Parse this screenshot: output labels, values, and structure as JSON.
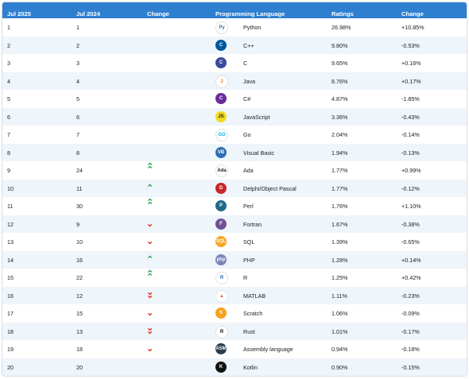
{
  "headers": [
    "Jul 2025",
    "Jul 2024",
    "Change",
    "Programming Language",
    "Ratings",
    "Change"
  ],
  "rows": [
    {
      "jul2025": "1",
      "jul2024": "1",
      "trend": "",
      "lang": "Python",
      "rating": "26.98%",
      "change": "+10.85%",
      "icon": "python-icon",
      "bg": "#ffffff",
      "fg": "#3776ab",
      "glyph": "Py"
    },
    {
      "jul2025": "2",
      "jul2024": "2",
      "trend": "",
      "lang": "C++",
      "rating": "9.80%",
      "change": "-0.53%",
      "icon": "cpp-icon",
      "bg": "#00599c",
      "fg": "#ffffff",
      "glyph": "C"
    },
    {
      "jul2025": "3",
      "jul2024": "3",
      "trend": "",
      "lang": "C",
      "rating": "9.65%",
      "change": "+0.16%",
      "icon": "c-icon",
      "bg": "#3a4aa0",
      "fg": "#ffffff",
      "glyph": "C"
    },
    {
      "jul2025": "4",
      "jul2024": "4",
      "trend": "",
      "lang": "Java",
      "rating": "8.76%",
      "change": "+0.17%",
      "icon": "java-icon",
      "bg": "#ffffff",
      "fg": "#e76f00",
      "glyph": "J"
    },
    {
      "jul2025": "5",
      "jul2024": "5",
      "trend": "",
      "lang": "C#",
      "rating": "4.87%",
      "change": "-1.85%",
      "icon": "csharp-icon",
      "bg": "#6a2c9a",
      "fg": "#ffffff",
      "glyph": "C"
    },
    {
      "jul2025": "6",
      "jul2024": "6",
      "trend": "",
      "lang": "JavaScript",
      "rating": "3.36%",
      "change": "-0.43%",
      "icon": "javascript-icon",
      "bg": "#f0db1f",
      "fg": "#222222",
      "glyph": "JS"
    },
    {
      "jul2025": "7",
      "jul2024": "7",
      "trend": "",
      "lang": "Go",
      "rating": "2.04%",
      "change": "-0.14%",
      "icon": "go-icon",
      "bg": "#ffffff",
      "fg": "#00add8",
      "glyph": "GO"
    },
    {
      "jul2025": "8",
      "jul2024": "8",
      "trend": "",
      "lang": "Visual Basic",
      "rating": "1.94%",
      "change": "-0.13%",
      "icon": "visual-basic-icon",
      "bg": "#2f6fb0",
      "fg": "#ffffff",
      "glyph": "VB"
    },
    {
      "jul2025": "9",
      "jul2024": "24",
      "trend": "up2",
      "lang": "Ada",
      "rating": "1.77%",
      "change": "+0.99%",
      "icon": "ada-icon",
      "bg": "#ffffff",
      "fg": "#222222",
      "glyph": "Ada"
    },
    {
      "jul2025": "10",
      "jul2024": "11",
      "trend": "up1",
      "lang": "Delphi/Object Pascal",
      "rating": "1.77%",
      "change": "-0.12%",
      "icon": "delphi-icon",
      "bg": "#c62828",
      "fg": "#ffffff",
      "glyph": "D"
    },
    {
      "jul2025": "11",
      "jul2024": "30",
      "trend": "up2",
      "lang": "Perl",
      "rating": "1.76%",
      "change": "+1.10%",
      "icon": "perl-icon",
      "bg": "#1f6a8a",
      "fg": "#ffffff",
      "glyph": "P"
    },
    {
      "jul2025": "12",
      "jul2024": "9",
      "trend": "down1",
      "lang": "Fortran",
      "rating": "1.67%",
      "change": "-0.38%",
      "icon": "fortran-icon",
      "bg": "#734f96",
      "fg": "#ffffff",
      "glyph": "F"
    },
    {
      "jul2025": "13",
      "jul2024": "10",
      "trend": "down1",
      "lang": "SQL",
      "rating": "1.39%",
      "change": "-0.65%",
      "icon": "sql-icon",
      "bg": "#f5a623",
      "fg": "#ffffff",
      "glyph": "SQL"
    },
    {
      "jul2025": "14",
      "jul2024": "16",
      "trend": "up1",
      "lang": "PHP",
      "rating": "1.28%",
      "change": "+0.14%",
      "icon": "php-icon",
      "bg": "#7a86b8",
      "fg": "#ffffff",
      "glyph": "php"
    },
    {
      "jul2025": "15",
      "jul2024": "22",
      "trend": "up2",
      "lang": "R",
      "rating": "1.25%",
      "change": "+0.42%",
      "icon": "r-icon",
      "bg": "#ffffff",
      "fg": "#276dc3",
      "glyph": "R"
    },
    {
      "jul2025": "16",
      "jul2024": "12",
      "trend": "down2",
      "lang": "MATLAB",
      "rating": "1.11%",
      "change": "-0.23%",
      "icon": "matlab-icon",
      "bg": "#ffffff",
      "fg": "#e16737",
      "glyph": "▲"
    },
    {
      "jul2025": "17",
      "jul2024": "15",
      "trend": "down1",
      "lang": "Scratch",
      "rating": "1.06%",
      "change": "-0.09%",
      "icon": "scratch-icon",
      "bg": "#f7a21b",
      "fg": "#ffffff",
      "glyph": "S"
    },
    {
      "jul2025": "18",
      "jul2024": "13",
      "trend": "down2",
      "lang": "Rust",
      "rating": "1.01%",
      "change": "-0.17%",
      "icon": "rust-icon",
      "bg": "#ffffff",
      "fg": "#111111",
      "glyph": "R"
    },
    {
      "jul2025": "19",
      "jul2024": "18",
      "trend": "down1",
      "lang": "Assembly language",
      "rating": "0.94%",
      "change": "-0.18%",
      "icon": "assembly-icon",
      "bg": "#2b3e50",
      "fg": "#ffffff",
      "glyph": "ASM"
    },
    {
      "jul2025": "20",
      "jul2024": "20",
      "trend": "",
      "lang": "Kotlin",
      "rating": "0.90%",
      "change": "-0.15%",
      "icon": "kotlin-icon",
      "bg": "#111111",
      "fg": "#ffffff",
      "glyph": "K"
    }
  ]
}
